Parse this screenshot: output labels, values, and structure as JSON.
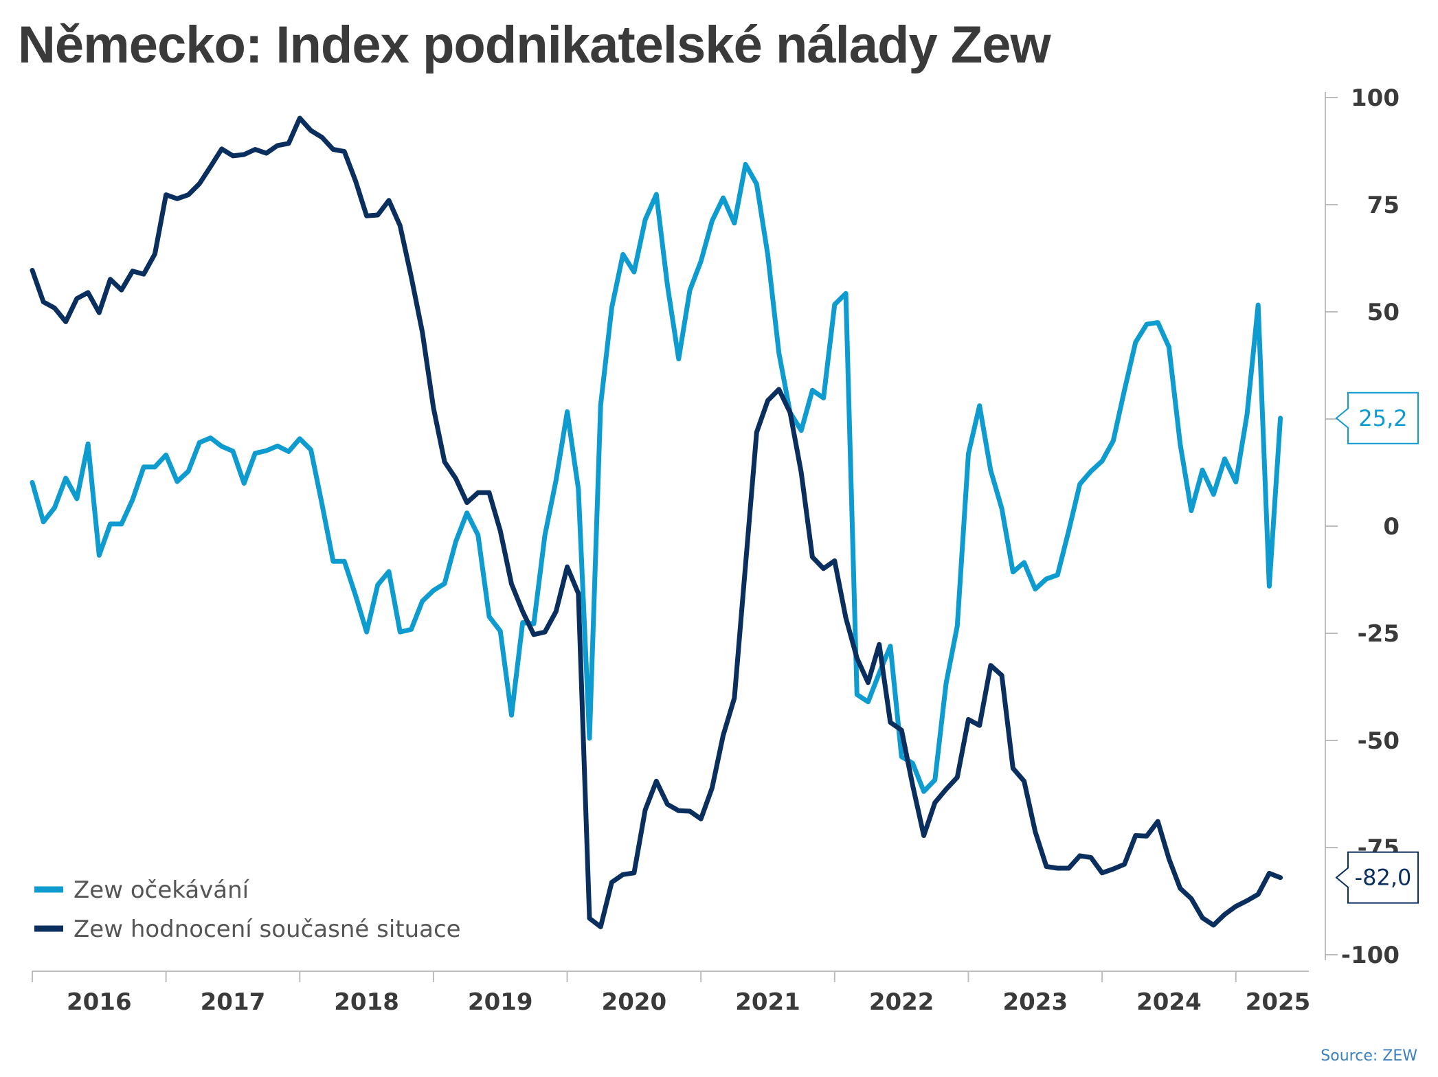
{
  "title": "Německo: Index podnikatelské nálady Zew",
  "source": "Source: ZEW",
  "chart_data": {
    "type": "line",
    "title": "Německo: Index podnikatelské nálady Zew",
    "x_start": "2016-01",
    "y_axis_position": "right",
    "ylim": [
      -100,
      100
    ],
    "yticks": [
      100,
      75,
      50,
      25,
      0,
      -25,
      -50,
      -75,
      -100
    ],
    "yticklabels": [
      "100",
      "75",
      "50",
      "25",
      "0",
      "-25",
      "-50",
      "-75",
      "-100"
    ],
    "xticklabels": [
      "2016",
      "2017",
      "2018",
      "2019",
      "2020",
      "2021",
      "2022",
      "2023",
      "2024",
      "2025"
    ],
    "legend_position": "bottom-left",
    "series": [
      {
        "name": "Zew očekávání",
        "color": "#0e9bd0",
        "last_label": "25,2",
        "values": [
          10.2,
          1.0,
          4.3,
          11.2,
          6.4,
          19.2,
          -6.8,
          0.5,
          0.5,
          6.2,
          13.8,
          13.8,
          16.6,
          10.4,
          12.8,
          19.5,
          20.6,
          18.6,
          17.5,
          10.0,
          17.0,
          17.6,
          18.7,
          17.4,
          20.4,
          17.8,
          5.1,
          -8.2,
          -8.2,
          -16.1,
          -24.7,
          -13.7,
          -10.6,
          -24.7,
          -24.1,
          -17.5,
          -15.0,
          -13.4,
          -3.6,
          3.1,
          -2.1,
          -21.1,
          -24.5,
          -44.1,
          -22.5,
          -22.8,
          -2.1,
          10.7,
          26.7,
          8.7,
          -49.5,
          28.2,
          51.0,
          63.4,
          59.3,
          71.5,
          77.4,
          56.1,
          39.0,
          55.0,
          61.8,
          71.2,
          76.6,
          70.7,
          84.4,
          79.8,
          63.3,
          40.4,
          26.5,
          22.3,
          31.7,
          29.9,
          51.7,
          54.3,
          -39.3,
          -41.0,
          -34.3,
          -28.0,
          -53.8,
          -55.3,
          -61.9,
          -59.2,
          -36.7,
          -23.3,
          16.9,
          28.1,
          13.0,
          4.1,
          -10.7,
          -8.5,
          -14.7,
          -12.3,
          -11.4,
          -1.1,
          9.8,
          12.8,
          15.2,
          19.9,
          31.7,
          42.9,
          47.1,
          47.5,
          41.8,
          19.2,
          3.6,
          13.1,
          7.4,
          15.7,
          10.3,
          26.0,
          51.6,
          -14.0,
          25.2
        ]
      },
      {
        "name": "Zew hodnocení současné situace",
        "color": "#0a2f5e",
        "last_label": "-82,0",
        "values": [
          59.7,
          52.3,
          50.9,
          47.7,
          53.1,
          54.5,
          49.8,
          57.6,
          55.1,
          59.5,
          58.8,
          63.5,
          77.3,
          76.4,
          77.3,
          79.9,
          83.9,
          88.0,
          86.4,
          86.7,
          87.9,
          87.0,
          88.8,
          89.3,
          95.2,
          92.3,
          90.7,
          87.9,
          87.4,
          80.6,
          72.4,
          72.6,
          76.0,
          70.1,
          58.2,
          45.3,
          27.6,
          15.0,
          11.1,
          5.5,
          7.8,
          7.8,
          -1.1,
          -13.5,
          -19.9,
          -25.3,
          -24.7,
          -19.9,
          -9.5,
          -15.7,
          -91.5,
          -93.5,
          -83.1,
          -81.3,
          -80.9,
          -66.2,
          -59.5,
          -64.9,
          -66.4,
          -66.5,
          -68.3,
          -61.1,
          -48.8,
          -40.1,
          -9.1,
          21.9,
          29.3,
          31.9,
          26.5,
          12.5,
          -7.2,
          -9.9,
          -8.1,
          -21.4,
          -30.8,
          -36.5,
          -27.6,
          -45.8,
          -47.6,
          -60.5,
          -72.2,
          -64.5,
          -61.4,
          -58.6,
          -45.1,
          -46.5,
          -32.5,
          -34.8,
          -56.5,
          -59.5,
          -71.3,
          -79.4,
          -79.8,
          -79.8,
          -76.9,
          -77.3,
          -80.9,
          -80.0,
          -78.9,
          -72.2,
          -72.3,
          -68.9,
          -77.6,
          -84.5,
          -86.9,
          -91.4,
          -93.1,
          -90.6,
          -88.7,
          -87.4,
          -85.9,
          -81.0,
          -82.0
        ]
      }
    ]
  }
}
